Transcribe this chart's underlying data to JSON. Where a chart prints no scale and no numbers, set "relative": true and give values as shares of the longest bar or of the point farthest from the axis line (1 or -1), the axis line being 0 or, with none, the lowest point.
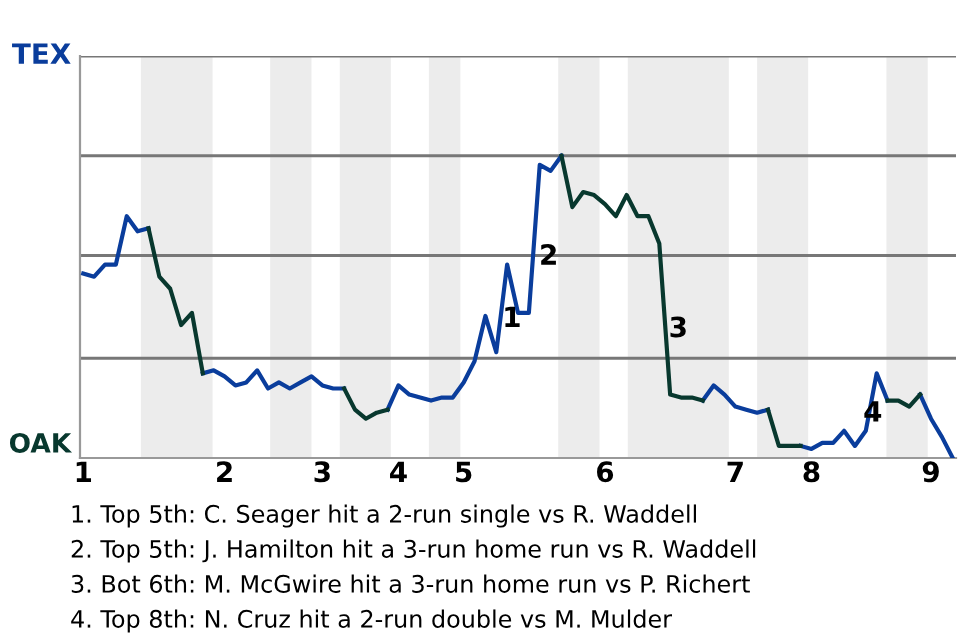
{
  "chart_data": {
    "type": "line",
    "relative": true,
    "categories": [
      "1",
      null,
      null,
      null,
      null,
      null,
      null,
      null,
      null,
      null,
      null,
      null,
      null,
      "2",
      null,
      null,
      null,
      null,
      null,
      null,
      null,
      null,
      "3",
      null,
      null,
      null,
      null,
      null,
      null,
      "4",
      null,
      null,
      null,
      null,
      null,
      "5",
      null,
      null,
      null,
      null,
      null,
      null,
      null,
      null,
      null,
      null,
      null,
      null,
      "6",
      null,
      null,
      null,
      null,
      null,
      null,
      null,
      null,
      null,
      null,
      null,
      "7",
      null,
      null,
      null,
      null,
      null,
      null,
      "8",
      null,
      null,
      null,
      null,
      null,
      null,
      null,
      null,
      null,
      null,
      "9",
      null,
      null
    ],
    "series": [
      {
        "color": "#0a3d9c",
        "values": [
          0.61,
          0.6,
          0.64,
          0.64,
          0.8,
          0.75,
          0.76,
          null,
          null,
          null,
          null,
          0.28,
          0.29,
          0.27,
          0.24,
          0.25,
          0.29,
          0.23,
          0.25,
          0.23,
          0.25,
          0.27,
          0.24,
          0.23,
          0.23,
          null,
          null,
          null,
          0.16,
          0.24,
          0.21,
          0.2,
          0.19,
          0.2,
          0.2,
          0.25,
          0.32,
          0.47,
          0.35,
          0.64,
          0.48,
          0.48,
          0.97,
          0.95,
          1,
          null,
          null,
          null,
          null,
          null,
          null,
          null,
          null,
          null,
          null,
          null,
          null,
          0.19,
          0.24,
          0.21,
          0.17,
          0.16,
          0.15,
          0.16,
          null,
          null,
          0.04,
          0.03,
          0.05,
          0.05,
          0.09,
          0.04,
          0.09,
          0.28,
          0.19,
          null,
          null,
          0.21,
          0.13,
          0.07,
          0
        ]
      },
      {
        "color": "#08382e",
        "values": [
          null,
          null,
          null,
          null,
          null,
          null,
          0.76,
          0.6,
          0.56,
          0.44,
          0.48,
          0.28,
          null,
          null,
          null,
          null,
          null,
          null,
          null,
          null,
          null,
          null,
          null,
          null,
          0.23,
          0.16,
          0.13,
          0.15,
          0.16,
          null,
          null,
          null,
          null,
          null,
          null,
          null,
          null,
          null,
          null,
          null,
          null,
          null,
          null,
          null,
          1,
          0.83,
          0.88,
          0.87,
          0.84,
          0.8,
          0.87,
          0.8,
          0.8,
          0.71,
          0.21,
          0.2,
          0.2,
          0.19,
          null,
          null,
          null,
          null,
          null,
          0.16,
          0.04,
          0.04,
          0.04,
          null,
          null,
          null,
          null,
          null,
          null,
          null,
          0.19,
          0.19,
          0.17,
          0.21,
          null,
          null,
          null
        ]
      }
    ],
    "marker": "none",
    "ref_lines": [
      {
        "axis": "y",
        "value": 0.33,
        "color": "#777777"
      },
      {
        "axis": "y",
        "value": 0.67,
        "color": "#777777"
      },
      {
        "axis": "y",
        "value": 1,
        "color": "#777777"
      },
      {
        "axis": "y",
        "value": 1.33,
        "color": "#777777"
      }
    ],
    "annotations": [
      "TEX",
      "OAK",
      "1",
      "2",
      "3",
      "4",
      "1. Top 5th: C. Seager hit a 2-run single vs R. Waddell",
      "2. Top 5th: J. Hamilton hit a 3-run home run vs R. Waddell",
      "3. Bot 6th: M. McGwire hit a 3-run home run vs P. Richert",
      "4. Top 8th: N. Cruz hit a 2-run double vs M. Mulder"
    ]
  }
}
